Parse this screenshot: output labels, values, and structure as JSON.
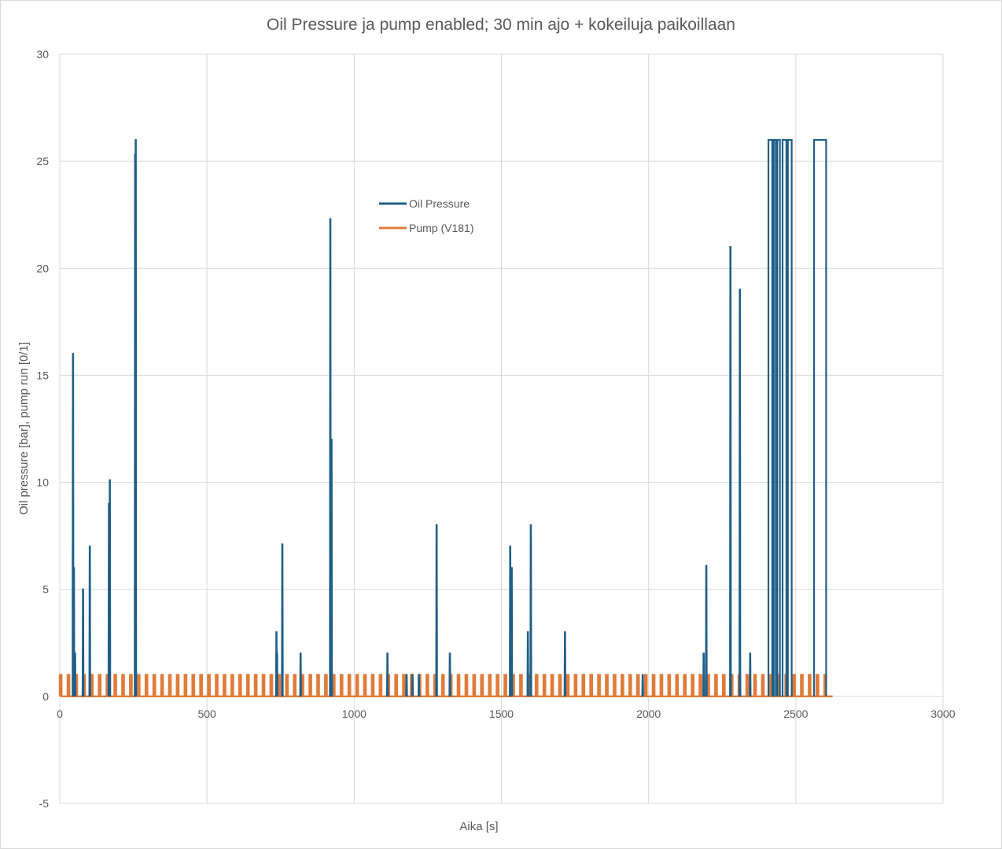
{
  "chart_data": {
    "type": "line",
    "title": "Oil Pressure ja pump enabled; 30 min ajo + kokeiluja paikoillaan",
    "xlabel": "Aika [s]",
    "ylabel": "Oil pressure [bar], pump run [0/1]",
    "xlim": [
      0,
      3000
    ],
    "ylim": [
      -5,
      30
    ],
    "xticks": [
      0,
      500,
      1000,
      1500,
      2000,
      2500,
      3000
    ],
    "yticks": [
      -5,
      0,
      5,
      10,
      15,
      20,
      25,
      30
    ],
    "grid": true,
    "legend_position": "inside-top-left",
    "colors": {
      "oil": "#1f5f87",
      "pump": "#e07b39",
      "grid": "#d9d9d9",
      "text": "#595959"
    },
    "series": [
      {
        "name": "Oil Pressure",
        "pulses": [
          [
            45,
            16.0
          ],
          [
            48,
            6.0
          ],
          [
            52,
            2.0
          ],
          [
            79,
            5.0
          ],
          [
            102,
            7.0
          ],
          [
            167,
            9.0
          ],
          [
            170,
            10.1
          ],
          [
            256,
            25.3
          ],
          [
            258,
            26.0
          ],
          [
            736,
            3.0
          ],
          [
            738,
            2.0
          ],
          [
            756,
            7.1
          ],
          [
            818,
            2.0
          ],
          [
            919,
            22.3
          ],
          [
            923,
            12.0
          ],
          [
            1113,
            2.0
          ],
          [
            1178,
            1.0
          ],
          [
            1198,
            1.0
          ],
          [
            1220,
            1.0
          ],
          [
            1280,
            8.0
          ],
          [
            1325,
            2.0
          ],
          [
            1530,
            7.0
          ],
          [
            1535,
            6.0
          ],
          [
            1590,
            3.0
          ],
          [
            1600,
            8.0
          ],
          [
            1716,
            3.0
          ],
          [
            1980,
            1.0
          ],
          [
            2187,
            2.0
          ],
          [
            2196,
            6.1
          ],
          [
            2278,
            21.0
          ],
          [
            2310,
            19.0
          ],
          [
            2345,
            2.0
          ]
        ],
        "plateaus": [
          [
            2407,
            2420,
            26.0
          ],
          [
            2425,
            2432,
            26.0
          ],
          [
            2437,
            2446,
            26.0
          ],
          [
            2455,
            2468,
            26.0
          ],
          [
            2473,
            2486,
            26.0
          ],
          [
            2562,
            2603,
            26.0
          ]
        ]
      },
      {
        "name": "Pump (V181)",
        "x_start": 0,
        "x_end": 2625,
        "period": 26.5,
        "pulse_width": 6,
        "on_value": 1,
        "off_value": 0
      }
    ]
  }
}
